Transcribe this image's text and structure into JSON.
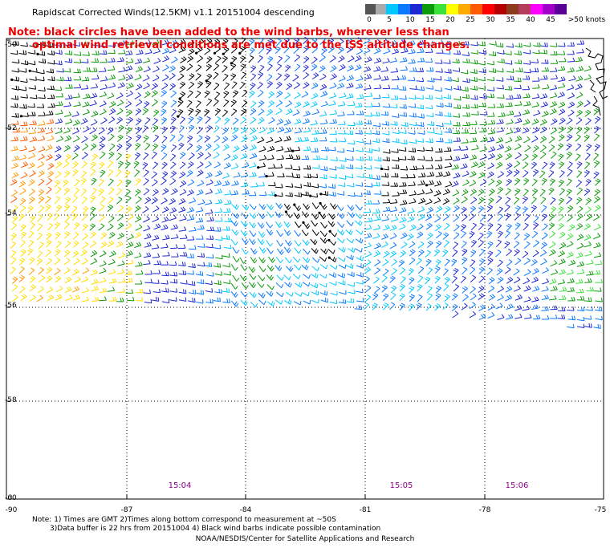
{
  "title": "Rapidscat Corrected Winds(12.5KM) v1.1 20151004 descending",
  "note_line1": "Note: black circles have been added to the wind barbs, wherever less than",
  "note_line2": "optimal wind retrieval conditions are met due to the ISS altitude changes.",
  "colorbar": {
    "labels": [
      "0",
      "5",
      "10",
      "15",
      "20",
      "25",
      "30",
      "35",
      "40",
      "45",
      ">50 knots"
    ],
    "colors": [
      "#555555",
      "#aaaaaa",
      "#00c8ff",
      "#0a78ff",
      "#1e28d2",
      "#0a9a0a",
      "#3ce13c",
      "#ffff00",
      "#ffaa00",
      "#ff5a00",
      "#ff0000",
      "#b40000",
      "#8c3c1e",
      "#b43c5a",
      "#ff00ff",
      "#a000c8",
      "#5a0096"
    ]
  },
  "map": {
    "lon_range": [
      -90,
      -75
    ],
    "lat_range": [
      -60,
      -50
    ],
    "lat_labels": [
      "-50",
      "-52",
      "-54",
      "-56",
      "-58",
      "-60"
    ],
    "lon_labels": [
      "-90",
      "-87",
      "-84",
      "-81",
      "-78",
      "-75"
    ],
    "time_labels": [
      "15:04",
      "15:05",
      "15:06"
    ],
    "colors": {
      "grid": "#000000",
      "barb_cyan": "#00c8ff",
      "barb_lightblue": "#0a78ff",
      "barb_blue": "#1e28d2",
      "barb_green": "#0a9a0a",
      "barb_lightgreen": "#3ce13c",
      "barb_yellow": "#ffdd00",
      "barb_orange": "#ff9900",
      "barb_red": "#ff5a00",
      "barb_black": "#000000"
    }
  },
  "footer": {
    "line1": "Note: 1) Times are GMT 2)Times along bottom correspond to measurement at ~50S",
    "line2": "3)Data buffer is 22 hrs from 20151004 4) Black wind barbs indicate possible contamination",
    "credit": "NOAA/NESDIS/Center for Satellite Applications and Research"
  }
}
